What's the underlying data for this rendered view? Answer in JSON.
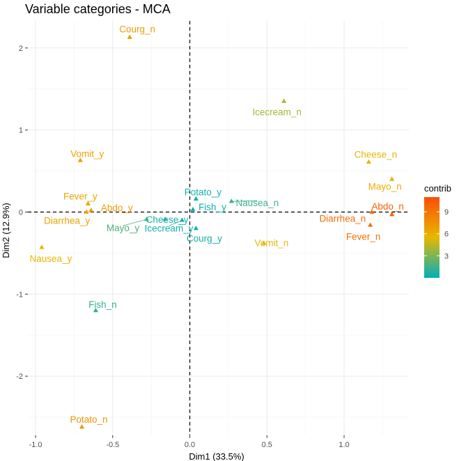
{
  "chart_data": {
    "type": "scatter",
    "title": "Variable categories - MCA",
    "xlabel": "Dim1 (33.5%)",
    "ylabel": "Dim2 (12.9%)",
    "xlim": [
      -1.05,
      1.42
    ],
    "ylim": [
      -2.72,
      2.33
    ],
    "x_ticks": [
      -1.0,
      -0.5,
      0.0,
      0.5,
      1.0
    ],
    "x_tick_labels": [
      "-1.0",
      "-0.5",
      "0.0",
      "0.5",
      "1.0"
    ],
    "y_ticks": [
      -2,
      -1,
      0,
      1,
      2
    ],
    "y_tick_labels": [
      "-2",
      "-1",
      "0",
      "1",
      "2"
    ],
    "grid": true,
    "reference_lines": {
      "x": 0,
      "y": 0,
      "style": "dashed"
    },
    "legend": {
      "title": "contrib",
      "placement": "right",
      "min": 0,
      "max": 11,
      "ticks": [
        3,
        6,
        9
      ],
      "tick_labels": [
        "3",
        "6",
        "9"
      ],
      "colors": [
        "#00AFBB",
        "#E7B800",
        "#FC4E07"
      ]
    },
    "points": [
      {
        "label": "Courg_n",
        "x": -0.39,
        "y": 2.13,
        "contrib": 7.0
      },
      {
        "label": "Icecream_n",
        "x": 0.61,
        "y": 1.35,
        "contrib": 4.0
      },
      {
        "label": "Vomit_y",
        "x": -0.71,
        "y": 0.63,
        "contrib": 6.7
      },
      {
        "label": "Cheese_n",
        "x": 1.16,
        "y": 0.61,
        "contrib": 5.4
      },
      {
        "label": "Mayo_n",
        "x": 1.31,
        "y": 0.4,
        "contrib": 6.0
      },
      {
        "label": "Potato_y",
        "x": 0.04,
        "y": 0.16,
        "contrib": 0.5
      },
      {
        "label": "Fever_y",
        "x": -0.66,
        "y": 0.1,
        "contrib": 6.5
      },
      {
        "label": "Nausea_n",
        "x": 0.27,
        "y": 0.13,
        "contrib": 1.5
      },
      {
        "label": "Abdo_y",
        "x": -0.64,
        "y": 0.02,
        "contrib": 6.8
      },
      {
        "label": "Fish_y",
        "x": 0.02,
        "y": 0.03,
        "contrib": 0.3
      },
      {
        "label": "Abdo_n",
        "x": 1.31,
        "y": -0.03,
        "contrib": 10.0
      },
      {
        "label": "Diarrhea_y",
        "x": -0.67,
        "y": 0.0,
        "contrib": 6.6
      },
      {
        "label": "Diarrhea_n",
        "x": 1.18,
        "y": 0.0,
        "contrib": 9.5
      },
      {
        "label": "Cheese_y",
        "x": -0.16,
        "y": -0.09,
        "contrib": 0.6
      },
      {
        "label": "Mayo_y",
        "x": -0.28,
        "y": -0.09,
        "contrib": 1.8
      },
      {
        "label": "Icecream_y",
        "x": -0.05,
        "y": -0.1,
        "contrib": 0.5
      },
      {
        "label": "Fever_n",
        "x": 1.17,
        "y": -0.16,
        "contrib": 9.2
      },
      {
        "label": "Courg_y",
        "x": 0.04,
        "y": -0.2,
        "contrib": 0.5
      },
      {
        "label": "Vomit_n",
        "x": 0.48,
        "y": -0.38,
        "contrib": 5.5
      },
      {
        "label": "Nausea_y",
        "x": -0.96,
        "y": -0.43,
        "contrib": 5.6
      },
      {
        "label": "Fish_n",
        "x": -0.61,
        "y": -1.2,
        "contrib": 1.2
      },
      {
        "label": "Potato_n",
        "x": -0.7,
        "y": -2.62,
        "contrib": 7.2
      }
    ]
  }
}
